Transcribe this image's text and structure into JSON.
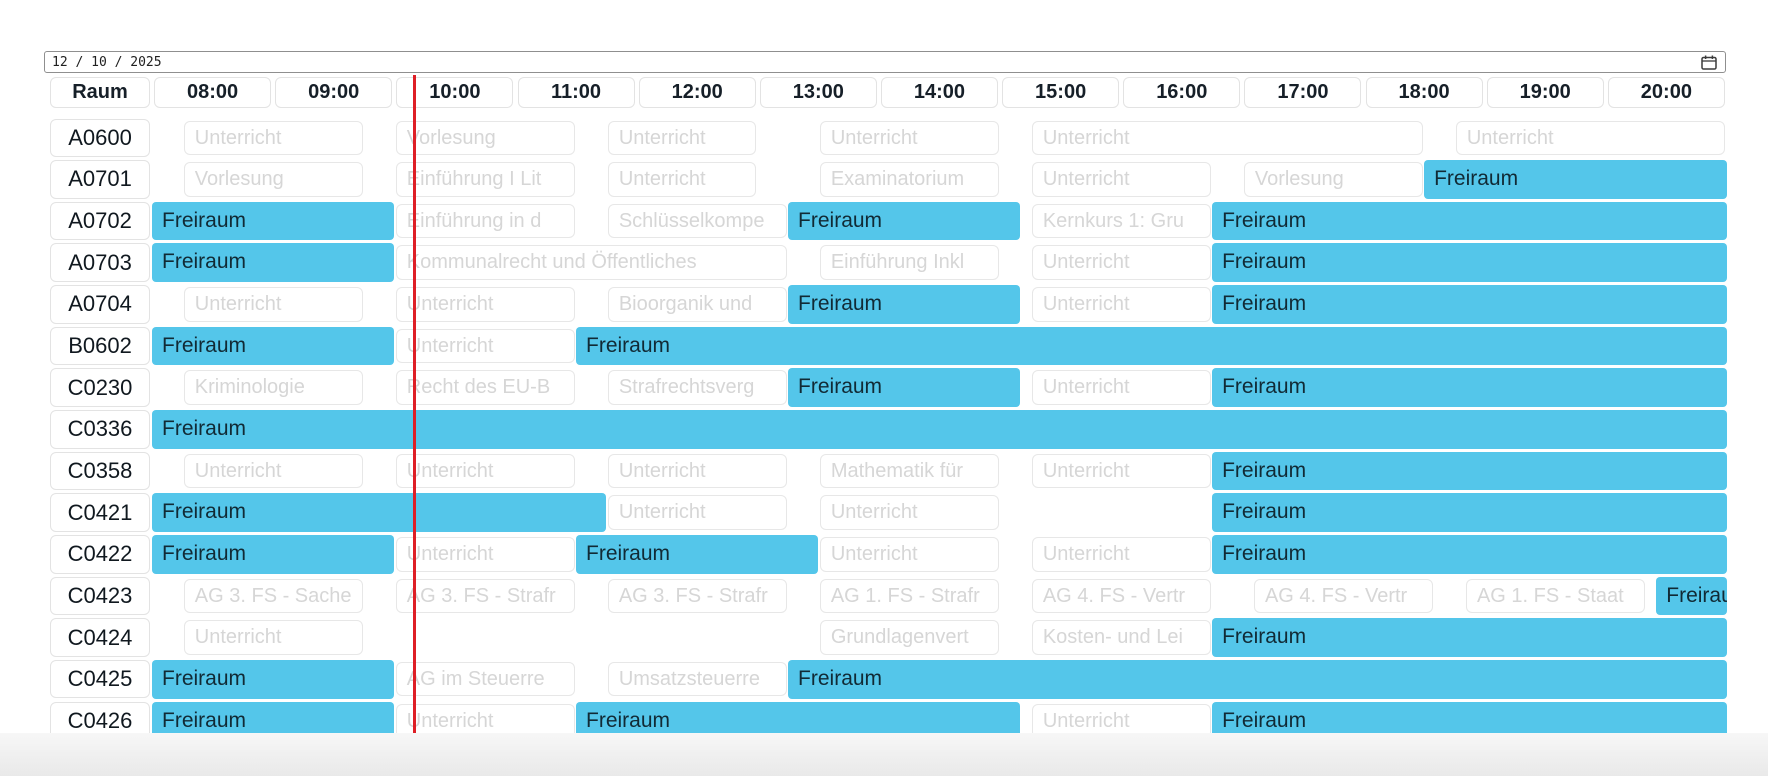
{
  "date_input": {
    "value": "12 / 10 / 2025"
  },
  "timeline": {
    "room_column_header": "Raum",
    "hour_labels": [
      "08:00",
      "09:00",
      "10:00",
      "11:00",
      "12:00",
      "13:00",
      "14:00",
      "15:00",
      "16:00",
      "17:00",
      "18:00",
      "19:00",
      "20:00"
    ],
    "axis_start": "07:30",
    "axis_end": "20:30",
    "current_time": "09:40"
  },
  "colors": {
    "free_block": "#54c6ea",
    "free_text": "#112a35",
    "busy_text": "#d6d6d6",
    "busy_border": "#e7e7e7",
    "current_time_line": "#de1f26"
  },
  "rooms": [
    {
      "name": "A0600",
      "events": [
        {
          "label": "Unterricht",
          "type": "busy",
          "start": "07:45",
          "end": "09:15"
        },
        {
          "label": "Vorlesung",
          "type": "busy",
          "start": "09:30",
          "end": "11:00"
        },
        {
          "label": "Unterricht",
          "type": "busy",
          "start": "11:15",
          "end": "12:30"
        },
        {
          "label": "Unterricht",
          "type": "busy",
          "start": "13:00",
          "end": "14:30"
        },
        {
          "label": "Unterricht",
          "type": "busy",
          "start": "14:45",
          "end": "18:00"
        },
        {
          "label": "Unterricht",
          "type": "busy",
          "start": "18:15",
          "end": "20:30"
        }
      ]
    },
    {
      "name": "A0701",
      "events": [
        {
          "label": "Vorlesung",
          "type": "busy",
          "start": "07:45",
          "end": "09:15"
        },
        {
          "label": "Einführung I Lit",
          "type": "busy",
          "start": "09:30",
          "end": "11:00"
        },
        {
          "label": "Unterricht",
          "type": "busy",
          "start": "11:15",
          "end": "12:30"
        },
        {
          "label": "Examinatorium",
          "type": "busy",
          "start": "13:00",
          "end": "14:30"
        },
        {
          "label": "Unterricht",
          "type": "busy",
          "start": "14:45",
          "end": "16:15"
        },
        {
          "label": "Vorlesung",
          "type": "busy",
          "start": "16:30",
          "end": "18:00"
        },
        {
          "label": "Freiraum",
          "type": "free",
          "start": "18:00",
          "end": "20:30"
        }
      ]
    },
    {
      "name": "A0702",
      "events": [
        {
          "label": "Freiraum",
          "type": "free",
          "start": "07:30",
          "end": "09:30"
        },
        {
          "label": "Einführung in d",
          "type": "busy",
          "start": "09:30",
          "end": "11:00"
        },
        {
          "label": "Schlüsselkompe",
          "type": "busy",
          "start": "11:15",
          "end": "12:45"
        },
        {
          "label": "Freiraum",
          "type": "free",
          "start": "12:45",
          "end": "14:40"
        },
        {
          "label": "Kernkurs 1: Gru",
          "type": "busy",
          "start": "14:45",
          "end": "16:15"
        },
        {
          "label": "Freiraum",
          "type": "free",
          "start": "16:15",
          "end": "20:30"
        }
      ]
    },
    {
      "name": "A0703",
      "events": [
        {
          "label": "Freiraum",
          "type": "free",
          "start": "07:30",
          "end": "09:30"
        },
        {
          "label": "Kommunalrecht und Öffentliches",
          "type": "busy",
          "start": "09:30",
          "end": "12:45"
        },
        {
          "label": "Einführung Inkl",
          "type": "busy",
          "start": "13:00",
          "end": "14:30"
        },
        {
          "label": "Unterricht",
          "type": "busy",
          "start": "14:45",
          "end": "16:15"
        },
        {
          "label": "Freiraum",
          "type": "free",
          "start": "16:15",
          "end": "20:30"
        }
      ]
    },
    {
      "name": "A0704",
      "events": [
        {
          "label": "Unterricht",
          "type": "busy",
          "start": "07:45",
          "end": "09:15"
        },
        {
          "label": "Unterricht",
          "type": "busy",
          "start": "09:30",
          "end": "11:00"
        },
        {
          "label": "Bioorganik und",
          "type": "busy",
          "start": "11:15",
          "end": "12:45"
        },
        {
          "label": "Freiraum",
          "type": "free",
          "start": "12:45",
          "end": "14:40"
        },
        {
          "label": "Unterricht",
          "type": "busy",
          "start": "14:45",
          "end": "16:15"
        },
        {
          "label": "Freiraum",
          "type": "free",
          "start": "16:15",
          "end": "20:30"
        }
      ]
    },
    {
      "name": "B0602",
      "events": [
        {
          "label": "Freiraum",
          "type": "free",
          "start": "07:30",
          "end": "09:30"
        },
        {
          "label": "Unterricht",
          "type": "busy",
          "start": "09:30",
          "end": "11:00"
        },
        {
          "label": "Freiraum",
          "type": "free",
          "start": "11:00",
          "end": "20:30"
        }
      ]
    },
    {
      "name": "C0230",
      "events": [
        {
          "label": "Kriminologie",
          "type": "busy",
          "start": "07:45",
          "end": "09:15"
        },
        {
          "label": "Recht des EU-B",
          "type": "busy",
          "start": "09:30",
          "end": "11:00"
        },
        {
          "label": "Strafrechtsverg",
          "type": "busy",
          "start": "11:15",
          "end": "12:45"
        },
        {
          "label": "Freiraum",
          "type": "free",
          "start": "12:45",
          "end": "14:40"
        },
        {
          "label": "Unterricht",
          "type": "busy",
          "start": "14:45",
          "end": "16:15"
        },
        {
          "label": "Freiraum",
          "type": "free",
          "start": "16:15",
          "end": "20:30"
        }
      ]
    },
    {
      "name": "C0336",
      "events": [
        {
          "label": "Freiraum",
          "type": "free",
          "start": "07:30",
          "end": "20:30"
        }
      ]
    },
    {
      "name": "C0358",
      "events": [
        {
          "label": "Unterricht",
          "type": "busy",
          "start": "07:45",
          "end": "09:15"
        },
        {
          "label": "Unterricht",
          "type": "busy",
          "start": "09:30",
          "end": "11:00"
        },
        {
          "label": "Unterricht",
          "type": "busy",
          "start": "11:15",
          "end": "12:45"
        },
        {
          "label": "Mathematik für",
          "type": "busy",
          "start": "13:00",
          "end": "14:30"
        },
        {
          "label": "Unterricht",
          "type": "busy",
          "start": "14:45",
          "end": "16:15"
        },
        {
          "label": "Freiraum",
          "type": "free",
          "start": "16:15",
          "end": "20:30"
        }
      ]
    },
    {
      "name": "C0421",
      "events": [
        {
          "label": "Freiraum",
          "type": "free",
          "start": "07:30",
          "end": "11:15"
        },
        {
          "label": "Unterricht",
          "type": "busy",
          "start": "11:15",
          "end": "12:45"
        },
        {
          "label": "Unterricht",
          "type": "busy",
          "start": "13:00",
          "end": "14:30"
        },
        {
          "label": "Freiraum",
          "type": "free",
          "start": "16:15",
          "end": "20:30"
        }
      ]
    },
    {
      "name": "C0422",
      "events": [
        {
          "label": "Freiraum",
          "type": "free",
          "start": "07:30",
          "end": "09:30"
        },
        {
          "label": "Unterricht",
          "type": "busy",
          "start": "09:30",
          "end": "11:00"
        },
        {
          "label": "Freiraum",
          "type": "free",
          "start": "11:00",
          "end": "13:00"
        },
        {
          "label": "Unterricht",
          "type": "busy",
          "start": "13:00",
          "end": "14:30"
        },
        {
          "label": "Unterricht",
          "type": "busy",
          "start": "14:45",
          "end": "16:15"
        },
        {
          "label": "Freiraum",
          "type": "free",
          "start": "16:15",
          "end": "20:30"
        }
      ]
    },
    {
      "name": "C0423",
      "events": [
        {
          "label": "AG 3. FS - Sache",
          "type": "busy",
          "start": "07:45",
          "end": "09:15"
        },
        {
          "label": "AG 3. FS - Strafr",
          "type": "busy",
          "start": "09:30",
          "end": "11:00"
        },
        {
          "label": "AG 3. FS - Strafr",
          "type": "busy",
          "start": "11:15",
          "end": "12:45"
        },
        {
          "label": "AG 1. FS - Strafr",
          "type": "busy",
          "start": "13:00",
          "end": "14:30"
        },
        {
          "label": "AG 4. FS - Vertr",
          "type": "busy",
          "start": "14:45",
          "end": "16:15"
        },
        {
          "label": "AG 4. FS - Vertr",
          "type": "busy",
          "start": "16:35",
          "end": "18:05"
        },
        {
          "label": "AG 1. FS - Staat",
          "type": "busy",
          "start": "18:20",
          "end": "19:50"
        },
        {
          "label": "Freiraum",
          "type": "free",
          "start": "19:55",
          "end": "20:30"
        }
      ]
    },
    {
      "name": "C0424",
      "events": [
        {
          "label": "Unterricht",
          "type": "busy",
          "start": "07:45",
          "end": "09:15"
        },
        {
          "label": "Grundlagenvert",
          "type": "busy",
          "start": "13:00",
          "end": "14:30"
        },
        {
          "label": "Kosten- und Lei",
          "type": "busy",
          "start": "14:45",
          "end": "16:15"
        },
        {
          "label": "Freiraum",
          "type": "free",
          "start": "16:15",
          "end": "20:30"
        }
      ]
    },
    {
      "name": "C0425",
      "events": [
        {
          "label": "Freiraum",
          "type": "free",
          "start": "07:30",
          "end": "09:30"
        },
        {
          "label": "AG im Steuerre",
          "type": "busy",
          "start": "09:30",
          "end": "11:00"
        },
        {
          "label": "Umsatzsteuerre",
          "type": "busy",
          "start": "11:15",
          "end": "12:45"
        },
        {
          "label": "Freiraum",
          "type": "free",
          "start": "12:45",
          "end": "20:30"
        }
      ]
    },
    {
      "name": "C0426",
      "events": [
        {
          "label": "Freiraum",
          "type": "free",
          "start": "07:30",
          "end": "09:30"
        },
        {
          "label": "Unterricht",
          "type": "busy",
          "start": "09:30",
          "end": "11:00"
        },
        {
          "label": "Freiraum",
          "type": "free",
          "start": "11:00",
          "end": "14:40"
        },
        {
          "label": "Unterricht",
          "type": "busy",
          "start": "14:45",
          "end": "16:15"
        },
        {
          "label": "Freiraum",
          "type": "free",
          "start": "16:15",
          "end": "20:30"
        }
      ]
    }
  ]
}
